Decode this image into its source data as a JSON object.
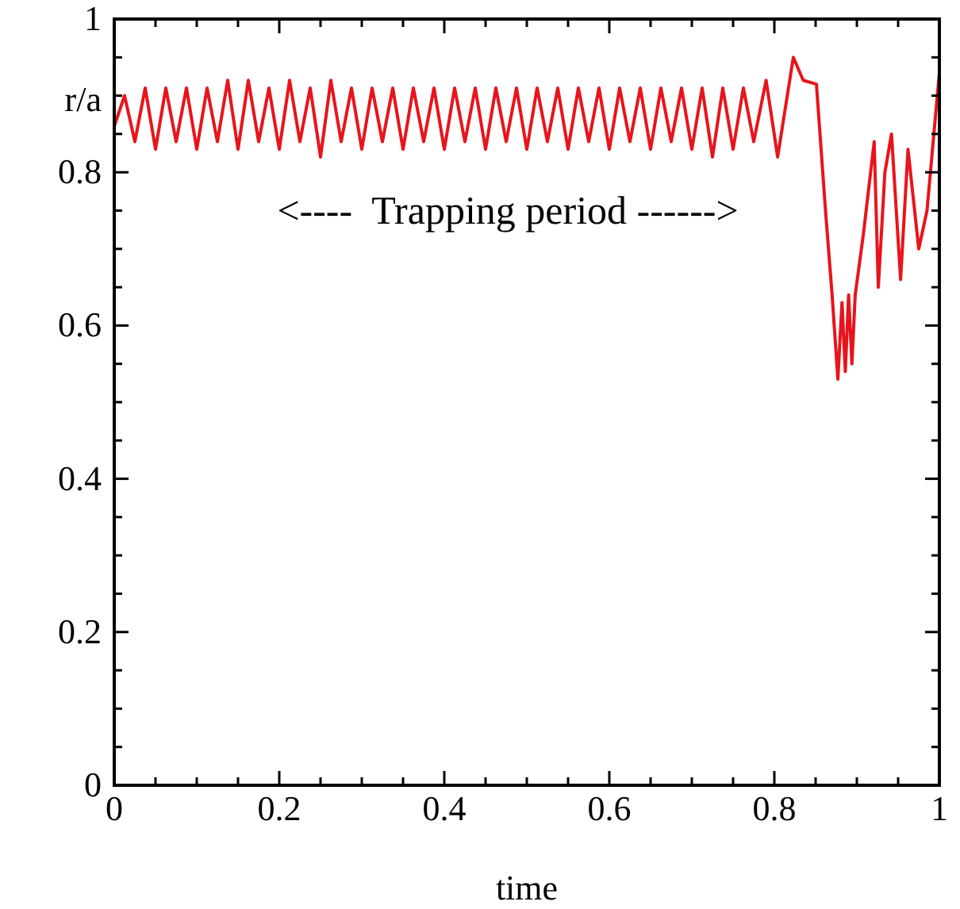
{
  "chart_data": {
    "type": "line",
    "xlabel": "time",
    "ylabel": "r/a",
    "x": [
      0,
      0.0125,
      0.025,
      0.0375,
      0.05,
      0.0625,
      0.075,
      0.0875,
      0.1,
      0.1125,
      0.125,
      0.1375,
      0.15,
      0.1625,
      0.175,
      0.1875,
      0.2,
      0.2125,
      0.225,
      0.2375,
      0.25,
      0.2625,
      0.275,
      0.2875,
      0.3,
      0.3125,
      0.325,
      0.3375,
      0.35,
      0.3625,
      0.375,
      0.3875,
      0.4,
      0.4125,
      0.425,
      0.4375,
      0.45,
      0.4625,
      0.475,
      0.4875,
      0.5,
      0.5125,
      0.525,
      0.5375,
      0.55,
      0.5625,
      0.575,
      0.5875,
      0.6,
      0.6125,
      0.625,
      0.6375,
      0.65,
      0.6625,
      0.675,
      0.6875,
      0.7,
      0.7125,
      0.725,
      0.7375,
      0.75,
      0.7625,
      0.775,
      0.79,
      0.804,
      0.823,
      0.835,
      0.851,
      0.862,
      0.87,
      0.877,
      0.882,
      0.886,
      0.89,
      0.894,
      0.898,
      0.908,
      0.921,
      0.926,
      0.934,
      0.942,
      0.953,
      0.962,
      0.975,
      0.985,
      1.0
    ],
    "series": [
      {
        "color": "#e8141c",
        "values": [
          0.86,
          0.9,
          0.84,
          0.91,
          0.83,
          0.91,
          0.84,
          0.91,
          0.83,
          0.91,
          0.84,
          0.92,
          0.83,
          0.92,
          0.84,
          0.91,
          0.83,
          0.92,
          0.84,
          0.91,
          0.82,
          0.92,
          0.84,
          0.91,
          0.83,
          0.91,
          0.84,
          0.91,
          0.83,
          0.91,
          0.84,
          0.91,
          0.83,
          0.91,
          0.84,
          0.91,
          0.83,
          0.91,
          0.84,
          0.91,
          0.83,
          0.91,
          0.84,
          0.91,
          0.83,
          0.91,
          0.84,
          0.91,
          0.83,
          0.91,
          0.84,
          0.91,
          0.83,
          0.91,
          0.84,
          0.91,
          0.83,
          0.91,
          0.82,
          0.91,
          0.83,
          0.91,
          0.84,
          0.92,
          0.82,
          0.95,
          0.92,
          0.915,
          0.75,
          0.64,
          0.53,
          0.63,
          0.54,
          0.64,
          0.55,
          0.64,
          0.72,
          0.84,
          0.65,
          0.8,
          0.85,
          0.66,
          0.83,
          0.7,
          0.75,
          0.93
        ]
      }
    ],
    "xlim": [
      0,
      1
    ],
    "ylim": [
      0,
      1
    ],
    "xticks": [
      0,
      {
        "value": 0.05,
        "label": null
      },
      {
        "value": 0.1,
        "label": null
      },
      {
        "value": 0.15,
        "label": null
      },
      0.2,
      {
        "value": 0.25,
        "label": null
      },
      {
        "value": 0.3,
        "label": null
      },
      {
        "value": 0.35,
        "label": null
      },
      0.4,
      {
        "value": 0.45,
        "label": null
      },
      {
        "value": 0.5,
        "label": null
      },
      {
        "value": 0.55,
        "label": null
      },
      0.6,
      {
        "value": 0.65,
        "label": null
      },
      {
        "value": 0.7,
        "label": null
      },
      {
        "value": 0.75,
        "label": null
      },
      0.8,
      {
        "value": 0.85,
        "label": null
      },
      {
        "value": 0.9,
        "label": null
      },
      {
        "value": 0.95,
        "label": null
      },
      1
    ],
    "yticks": [
      0,
      {
        "value": 0.05,
        "label": null
      },
      {
        "value": 0.1,
        "label": null
      },
      {
        "value": 0.15,
        "label": null
      },
      0.2,
      {
        "value": 0.25,
        "label": null
      },
      {
        "value": 0.3,
        "label": null
      },
      {
        "value": 0.35,
        "label": null
      },
      0.4,
      {
        "value": 0.45,
        "label": null
      },
      {
        "value": 0.5,
        "label": null
      },
      {
        "value": 0.55,
        "label": null
      },
      0.6,
      {
        "value": 0.65,
        "label": null
      },
      {
        "value": 0.7,
        "label": null
      },
      {
        "value": 0.75,
        "label": null
      },
      0.8,
      {
        "value": 0.85,
        "label": null
      },
      {
        "value": 0.9,
        "label": null
      },
      {
        "value": 0.95,
        "label": null
      },
      1
    ],
    "annotations": [
      "<----  Trapping period ------>"
    ]
  }
}
